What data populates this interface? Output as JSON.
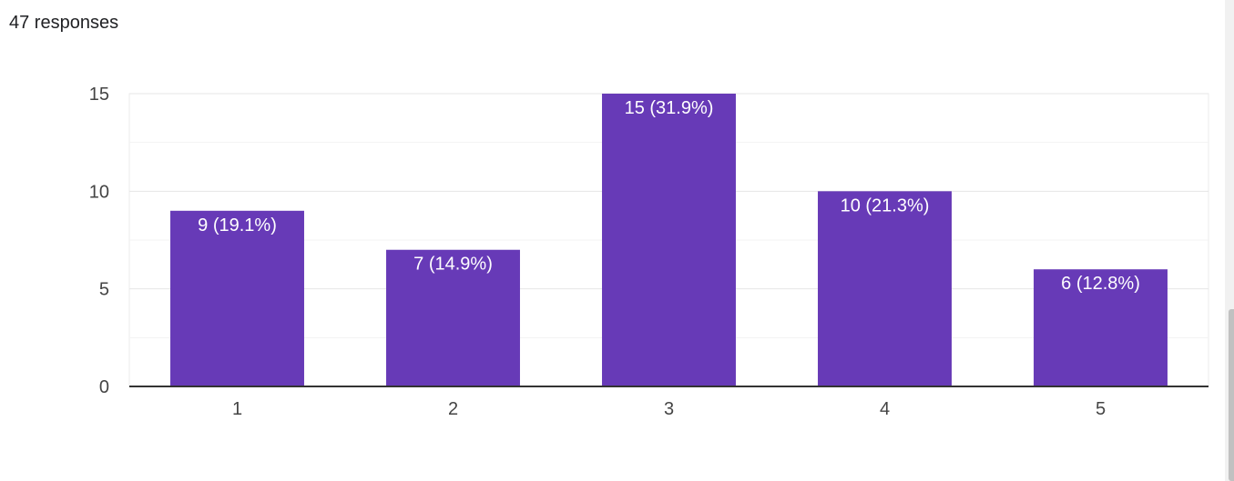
{
  "summary": {
    "responses_label": "47 responses"
  },
  "chart_data": {
    "type": "bar",
    "categories": [
      "1",
      "2",
      "3",
      "4",
      "5"
    ],
    "values": [
      9,
      7,
      15,
      10,
      6
    ],
    "data_labels": [
      "9 (19.1%)",
      "7 (14.9%)",
      "15 (31.9%)",
      "10 (21.3%)",
      "6 (12.8%)"
    ],
    "y_ticks": [
      0,
      5,
      10,
      15
    ],
    "ylim": [
      0,
      15
    ],
    "grid": true,
    "bar_color": "#673ab7",
    "xlabel": "",
    "ylabel": "",
    "title": ""
  }
}
